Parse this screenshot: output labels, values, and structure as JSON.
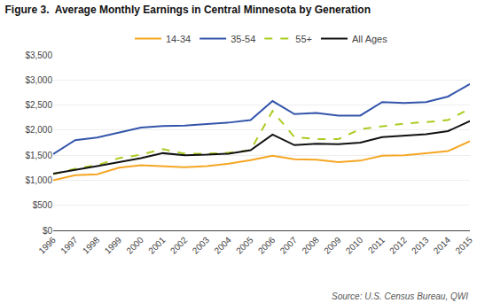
{
  "chart_data": {
    "type": "line",
    "title": "Figure 3.  Average Monthly Earnings in Central Minnesota by Generation",
    "annotations": [
      "Source: U.S. Census Bureau, QWI"
    ],
    "x": [
      1996,
      1997,
      1998,
      1999,
      2000,
      2001,
      2002,
      2003,
      2004,
      2005,
      2006,
      2007,
      2008,
      2009,
      2010,
      2011,
      2012,
      2013,
      2014,
      2015
    ],
    "series": [
      {
        "name": "14-34",
        "color": "#f5a623",
        "line_style": "solid",
        "values": [
          1000,
          1100,
          1120,
          1250,
          1300,
          1280,
          1260,
          1280,
          1330,
          1400,
          1490,
          1420,
          1410,
          1360,
          1390,
          1490,
          1500,
          1540,
          1580,
          1780
        ]
      },
      {
        "name": "35-54",
        "color": "#3355aa",
        "line_style": "solid",
        "values": [
          1520,
          1800,
          1850,
          1950,
          2050,
          2080,
          2090,
          2120,
          2150,
          2200,
          2580,
          2320,
          2340,
          2290,
          2290,
          2560,
          2540,
          2560,
          2670,
          2920
        ]
      },
      {
        "name": "55+",
        "color": "#aacc22",
        "line_style": "dashed",
        "values": [
          1120,
          1230,
          1300,
          1440,
          1510,
          1620,
          1530,
          1530,
          1550,
          1600,
          2380,
          1860,
          1820,
          1820,
          2020,
          2080,
          2130,
          2160,
          2200,
          2430
        ]
      },
      {
        "name": "All Ages",
        "color": "#111111",
        "line_style": "solid",
        "values": [
          1130,
          1200,
          1280,
          1360,
          1440,
          1540,
          1500,
          1510,
          1530,
          1600,
          1910,
          1700,
          1730,
          1720,
          1750,
          1860,
          1890,
          1920,
          1980,
          2180
        ]
      }
    ],
    "xlim": [
      1996,
      2015
    ],
    "xticks": [
      1996,
      1997,
      1998,
      1999,
      2000,
      2001,
      2002,
      2003,
      2004,
      2005,
      2006,
      2007,
      2008,
      2009,
      2010,
      2011,
      2012,
      2013,
      2014,
      2015
    ],
    "ylim": [
      0,
      3500
    ],
    "yticks": [
      {
        "value": 0,
        "label": "$0"
      },
      {
        "value": 500,
        "label": "$500"
      },
      {
        "value": 1000,
        "label": "$1,000"
      },
      {
        "value": 1500,
        "label": "$1,500"
      },
      {
        "value": 2000,
        "label": "$2,000"
      },
      {
        "value": 2500,
        "label": "$2,500"
      },
      {
        "value": 3000,
        "label": "$3,000"
      },
      {
        "value": 3500,
        "label": "$3,500"
      }
    ],
    "grid": "y",
    "legend": "top"
  }
}
